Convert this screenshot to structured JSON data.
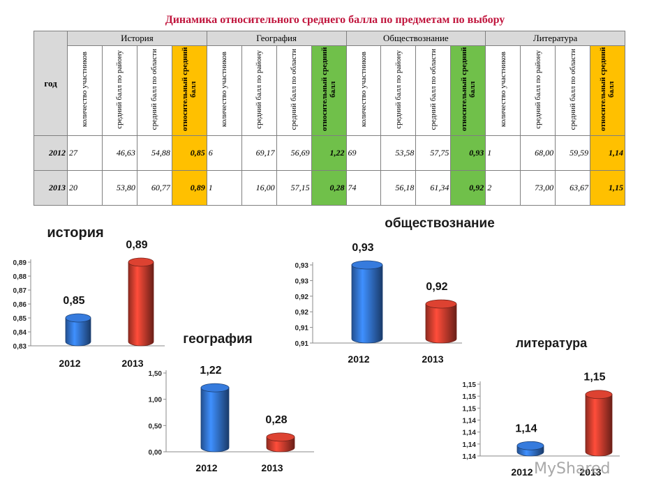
{
  "page_title": "Динамика относительного среднего балла по предметам по выбору",
  "table": {
    "year_header": "год",
    "subjects": [
      "История",
      "География",
      "Обществознание",
      "Литература"
    ],
    "column_headers": [
      "количество участников",
      "средний балл по району",
      "средний балл по области",
      "относительный средний балл"
    ],
    "rows": [
      {
        "year": "2012",
        "cells": [
          [
            "27",
            "46,63",
            "54,88",
            "0,85"
          ],
          [
            "6",
            "69,17",
            "56,69",
            "1,22"
          ],
          [
            "69",
            "53,58",
            "57,75",
            "0,93"
          ],
          [
            "1",
            "68,00",
            "59,59",
            "1,14"
          ]
        ]
      },
      {
        "year": "2013",
        "cells": [
          [
            "20",
            "53,80",
            "60,77",
            "0,89"
          ],
          [
            "1",
            "16,00",
            "57,15",
            "0,28"
          ],
          [
            "74",
            "56,18",
            "61,34",
            "0,92"
          ],
          [
            "2",
            "73,00",
            "63,67",
            "1,15"
          ]
        ]
      }
    ]
  },
  "colors": {
    "title": "#c0143c",
    "highlight_orange": "#ffc000",
    "highlight_green": "#70c04a",
    "bar_2012": "#2f6bc0",
    "bar_2013": "#c0392b"
  },
  "watermark": "MyShared",
  "chart_data": [
    {
      "type": "bar",
      "title": "история",
      "categories": [
        "2012",
        "2013"
      ],
      "values": [
        0.85,
        0.89
      ],
      "value_labels": [
        "0,85",
        "0,89"
      ],
      "ylim": [
        0.83,
        0.89
      ],
      "ytick_labels": [
        "0,83",
        "0,84",
        "0,85",
        "0,86",
        "0,87",
        "0,88",
        "0,89"
      ]
    },
    {
      "type": "bar",
      "title": "обществознание",
      "categories": [
        "2012",
        "2013"
      ],
      "values": [
        0.93,
        0.92
      ],
      "value_labels": [
        "0,93",
        "0,92"
      ],
      "ylim": [
        0.91,
        0.93
      ],
      "ytick_labels": [
        "0,91",
        "0,91",
        "0,92",
        "0,92",
        "0,93",
        "0,93"
      ]
    },
    {
      "type": "bar",
      "title": "география",
      "categories": [
        "2012",
        "2013"
      ],
      "values": [
        1.22,
        0.28
      ],
      "value_labels": [
        "1,22",
        "0,28"
      ],
      "ylim": [
        0.0,
        1.5
      ],
      "ytick_labels": [
        "0,00",
        "0,50",
        "1,00",
        "1,50"
      ]
    },
    {
      "type": "bar",
      "title": "литература",
      "categories": [
        "2012",
        "2013"
      ],
      "values": [
        1.14,
        1.15
      ],
      "value_labels": [
        "1,14",
        "1,15"
      ],
      "ylim": [
        1.138,
        1.152
      ],
      "ytick_labels": [
        "1,14",
        "1,14",
        "1,14",
        "1,14",
        "1,15",
        "1,15",
        "1,15"
      ]
    }
  ]
}
